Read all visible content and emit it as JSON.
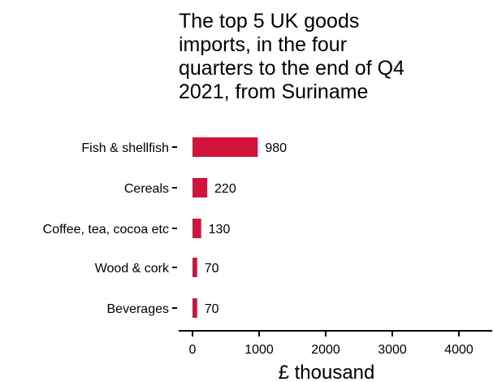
{
  "chart_data": {
    "type": "bar",
    "orientation": "horizontal",
    "title": "The top 5 UK goods imports, in the four quarters to the end of Q4 2021, from Suriname",
    "title_lines": [
      "The top 5 UK goods",
      "imports, in the four",
      "quarters to the end of Q4",
      "2021, from Suriname"
    ],
    "categories": [
      "Fish & shellfish",
      "Cereals",
      "Coffee, tea, cocoa etc",
      "Wood & cork",
      "Beverages"
    ],
    "values": [
      980,
      220,
      130,
      70,
      70
    ],
    "data_labels": [
      "980",
      "220",
      "130",
      "70",
      "70"
    ],
    "xlabel": "£ thousand",
    "ylabel": "",
    "xlim": [
      0,
      4500
    ],
    "x_ticks": [
      0,
      1000,
      2000,
      3000,
      4000
    ],
    "x_tick_labels": [
      "0",
      "1000",
      "2000",
      "3000",
      "4000"
    ],
    "bar_color": "#d0143c",
    "grid": false,
    "legend": "none"
  }
}
